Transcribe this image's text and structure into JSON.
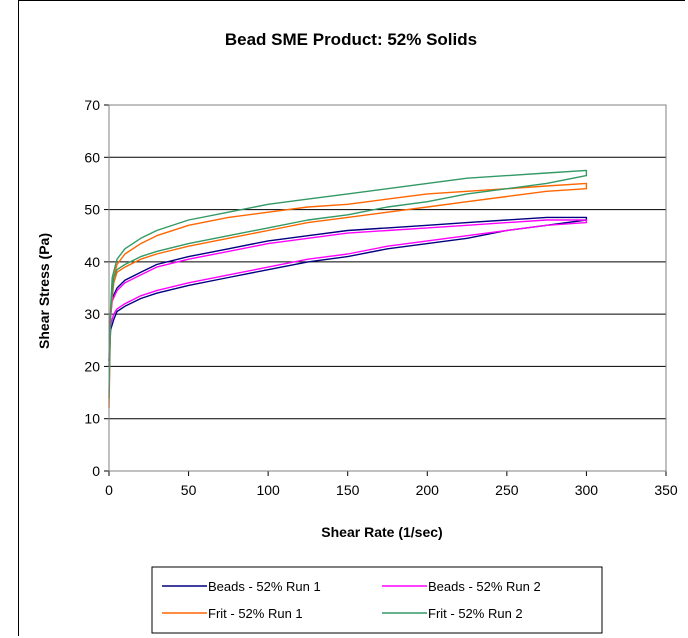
{
  "chart_data": {
    "type": "line",
    "title": "Bead SME Product: 52% Solids",
    "xlabel": "Shear Rate (1/sec)",
    "ylabel": "Shear Stress (Pa)",
    "xlim": [
      0,
      350
    ],
    "ylim": [
      0,
      70
    ],
    "x_ticks": [
      0,
      50,
      100,
      150,
      200,
      250,
      300,
      350
    ],
    "y_ticks": [
      0,
      10,
      20,
      30,
      40,
      50,
      60,
      70
    ],
    "grid": "horizontal major",
    "legend_position": "bottom",
    "series": [
      {
        "name": "Beads - 52% Run 1",
        "color": "#000080",
        "up": [
          [
            0,
            20
          ],
          [
            1,
            27
          ],
          [
            3,
            29
          ],
          [
            5,
            30.5
          ],
          [
            10,
            31.5
          ],
          [
            20,
            33
          ],
          [
            30,
            34
          ],
          [
            50,
            35.5
          ],
          [
            75,
            37
          ],
          [
            100,
            38.5
          ],
          [
            125,
            40
          ],
          [
            150,
            41
          ],
          [
            175,
            42.5
          ],
          [
            200,
            43.5
          ],
          [
            225,
            44.5
          ],
          [
            250,
            46
          ],
          [
            275,
            47
          ],
          [
            300,
            48
          ]
        ],
        "down": [
          [
            300,
            48.5
          ],
          [
            275,
            48.5
          ],
          [
            250,
            48
          ],
          [
            225,
            47.5
          ],
          [
            200,
            47
          ],
          [
            175,
            46.5
          ],
          [
            150,
            46
          ],
          [
            125,
            45
          ],
          [
            100,
            44
          ],
          [
            75,
            42.5
          ],
          [
            50,
            41
          ],
          [
            30,
            39.5
          ],
          [
            20,
            38
          ],
          [
            10,
            36.5
          ],
          [
            5,
            35
          ],
          [
            2,
            33
          ],
          [
            1,
            30
          ],
          [
            0,
            21
          ]
        ]
      },
      {
        "name": "Beads - 52% Run 2",
        "color": "#ff00ff",
        "up": [
          [
            0,
            21
          ],
          [
            1,
            28
          ],
          [
            3,
            30
          ],
          [
            5,
            31
          ],
          [
            10,
            32
          ],
          [
            20,
            33.5
          ],
          [
            30,
            34.5
          ],
          [
            50,
            36
          ],
          [
            75,
            37.5
          ],
          [
            100,
            39
          ],
          [
            125,
            40.5
          ],
          [
            150,
            41.5
          ],
          [
            175,
            43
          ],
          [
            200,
            44
          ],
          [
            225,
            45
          ],
          [
            250,
            46
          ],
          [
            275,
            47
          ],
          [
            300,
            47.5
          ]
        ],
        "down": [
          [
            300,
            48
          ],
          [
            275,
            48
          ],
          [
            250,
            47.5
          ],
          [
            225,
            47
          ],
          [
            200,
            46.5
          ],
          [
            175,
            46
          ],
          [
            150,
            45.5
          ],
          [
            125,
            44.5
          ],
          [
            100,
            43.5
          ],
          [
            75,
            42
          ],
          [
            50,
            40.5
          ],
          [
            30,
            39
          ],
          [
            20,
            37.5
          ],
          [
            10,
            36
          ],
          [
            5,
            34.5
          ],
          [
            2,
            32.5
          ],
          [
            1,
            29.5
          ],
          [
            0,
            22
          ]
        ]
      },
      {
        "name": "Frit - 52% Run 1",
        "color": "#ff6600",
        "up": [
          [
            0,
            12
          ],
          [
            1,
            30
          ],
          [
            3,
            36
          ],
          [
            5,
            38
          ],
          [
            10,
            39
          ],
          [
            20,
            40.5
          ],
          [
            30,
            41.5
          ],
          [
            50,
            43
          ],
          [
            75,
            44.5
          ],
          [
            100,
            46
          ],
          [
            125,
            47.5
          ],
          [
            150,
            48.5
          ],
          [
            175,
            49.5
          ],
          [
            200,
            50.5
          ],
          [
            225,
            51.5
          ],
          [
            250,
            52.5
          ],
          [
            275,
            53.5
          ],
          [
            300,
            54
          ]
        ],
        "down": [
          [
            300,
            55
          ],
          [
            275,
            54.5
          ],
          [
            250,
            54
          ],
          [
            225,
            53.5
          ],
          [
            200,
            53
          ],
          [
            175,
            52
          ],
          [
            150,
            51
          ],
          [
            125,
            50.5
          ],
          [
            100,
            49.5
          ],
          [
            75,
            48.5
          ],
          [
            50,
            47
          ],
          [
            30,
            45
          ],
          [
            20,
            43.5
          ],
          [
            10,
            41.5
          ],
          [
            5,
            39.5
          ],
          [
            2,
            36
          ],
          [
            1,
            30
          ],
          [
            0,
            13
          ]
        ]
      },
      {
        "name": "Frit - 52% Run 2",
        "color": "#339966",
        "up": [
          [
            0,
            14
          ],
          [
            1,
            31
          ],
          [
            3,
            37
          ],
          [
            5,
            38.5
          ],
          [
            10,
            39.5
          ],
          [
            20,
            41
          ],
          [
            30,
            42
          ],
          [
            50,
            43.5
          ],
          [
            75,
            45
          ],
          [
            100,
            46.5
          ],
          [
            125,
            48
          ],
          [
            150,
            49
          ],
          [
            175,
            50.5
          ],
          [
            200,
            51.5
          ],
          [
            225,
            53
          ],
          [
            250,
            54
          ],
          [
            275,
            55
          ],
          [
            300,
            56.5
          ]
        ],
        "down": [
          [
            300,
            57.5
          ],
          [
            275,
            57
          ],
          [
            250,
            56.5
          ],
          [
            225,
            56
          ],
          [
            200,
            55
          ],
          [
            175,
            54
          ],
          [
            150,
            53
          ],
          [
            125,
            52
          ],
          [
            100,
            51
          ],
          [
            75,
            49.5
          ],
          [
            50,
            48
          ],
          [
            30,
            46
          ],
          [
            20,
            44.5
          ],
          [
            10,
            42.5
          ],
          [
            5,
            40.5
          ],
          [
            2,
            37
          ],
          [
            1,
            31
          ],
          [
            0,
            15
          ]
        ]
      }
    ]
  }
}
